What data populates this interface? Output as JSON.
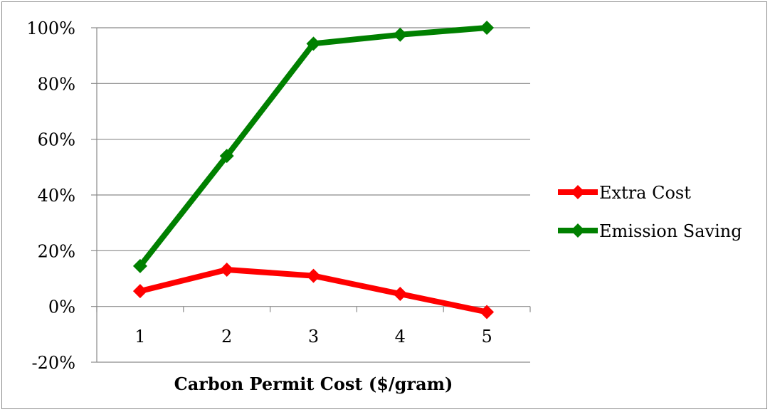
{
  "chart_data": {
    "type": "line",
    "title": "",
    "xlabel": "Carbon Permit Cost ($/gram)",
    "ylabel": "",
    "categories": [
      "1",
      "2",
      "3",
      "4",
      "5"
    ],
    "ylim": [
      -20,
      100
    ],
    "y_ticks": [
      -20,
      0,
      20,
      40,
      60,
      80,
      100
    ],
    "y_tick_labels": [
      "-20%",
      "0%",
      "20%",
      "40%",
      "60%",
      "80%",
      "100%"
    ],
    "grid": true,
    "legend_position": "right",
    "marker": "diamond",
    "series": [
      {
        "name": "Extra Cost",
        "color": "#ff0000",
        "values": [
          5.5,
          13.2,
          11.0,
          4.5,
          -2.0
        ]
      },
      {
        "name": "Emission Saving",
        "color": "#008000",
        "values": [
          14.5,
          54.0,
          94.3,
          97.5,
          100.0
        ]
      }
    ]
  }
}
